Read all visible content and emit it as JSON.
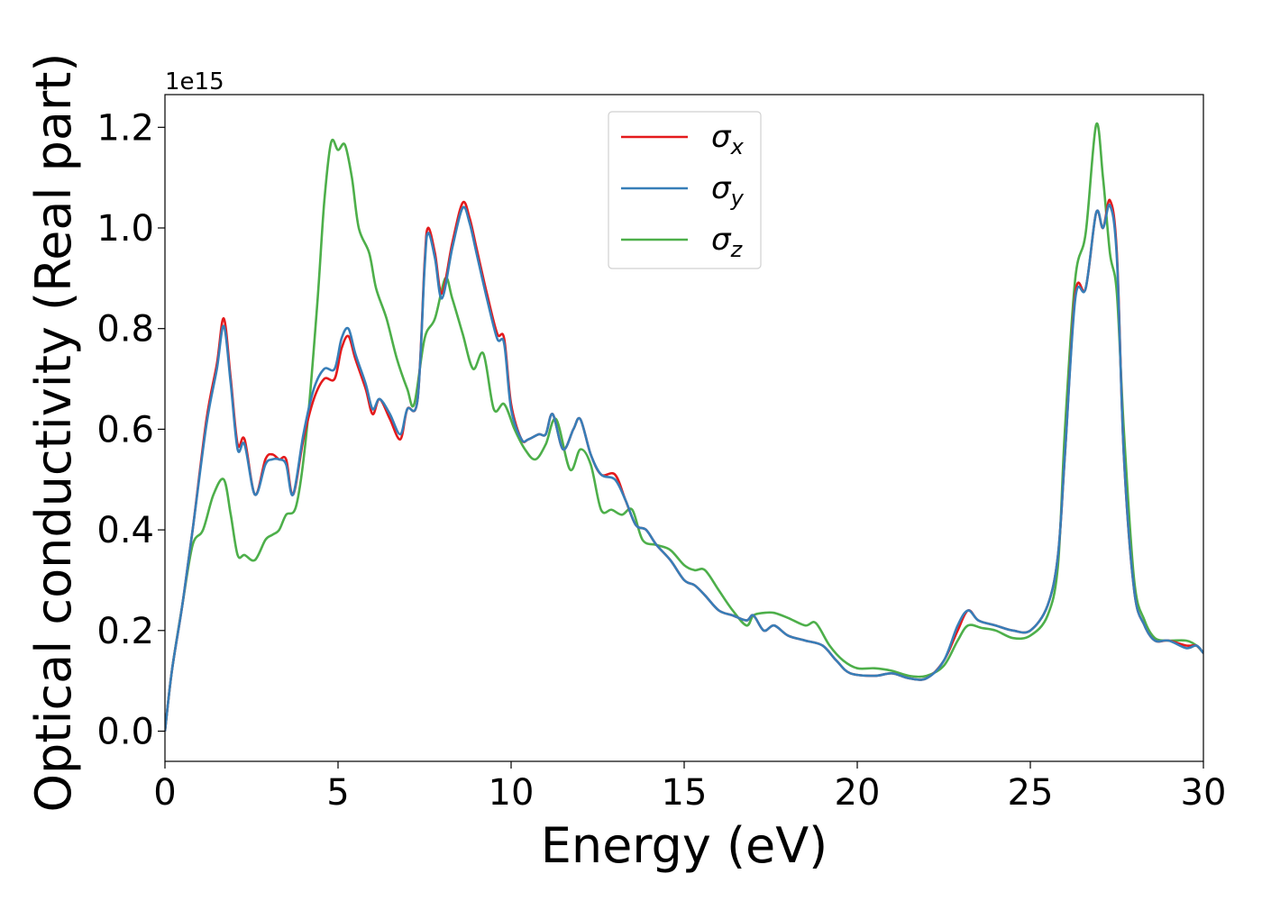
{
  "chart_data": {
    "type": "line",
    "xlabel": "Energy (eV)",
    "ylabel": "Optical conductivity (Real part)",
    "y_offset_label": "1e15",
    "xlim": [
      0,
      30
    ],
    "ylim": [
      -0.06,
      1.265
    ],
    "x_ticks": [
      0,
      5,
      10,
      15,
      20,
      25,
      30
    ],
    "x_tick_labels": [
      "0",
      "5",
      "10",
      "15",
      "20",
      "25",
      "30"
    ],
    "y_ticks": [
      0.0,
      0.2,
      0.4,
      0.6,
      0.8,
      1.0,
      1.2
    ],
    "y_tick_labels": [
      "0.0",
      "0.2",
      "0.4",
      "0.6",
      "0.8",
      "1.0",
      "1.2"
    ],
    "grid": false,
    "legend_position": "top-center",
    "series": [
      {
        "name": "σ",
        "subscript": "x",
        "color": "#e41a1c",
        "points": [
          [
            0,
            0
          ],
          [
            0.2,
            0.12
          ],
          [
            0.5,
            0.25
          ],
          [
            0.8,
            0.4
          ],
          [
            1.2,
            0.62
          ],
          [
            1.5,
            0.73
          ],
          [
            1.7,
            0.82
          ],
          [
            1.9,
            0.7
          ],
          [
            2.1,
            0.57
          ],
          [
            2.3,
            0.58
          ],
          [
            2.6,
            0.47
          ],
          [
            2.9,
            0.54
          ],
          [
            3.1,
            0.55
          ],
          [
            3.3,
            0.54
          ],
          [
            3.5,
            0.54
          ],
          [
            3.7,
            0.47
          ],
          [
            4.0,
            0.58
          ],
          [
            4.3,
            0.66
          ],
          [
            4.6,
            0.7
          ],
          [
            4.9,
            0.7
          ],
          [
            5.1,
            0.76
          ],
          [
            5.3,
            0.785
          ],
          [
            5.5,
            0.74
          ],
          [
            5.8,
            0.68
          ],
          [
            6.0,
            0.63
          ],
          [
            6.2,
            0.66
          ],
          [
            6.5,
            0.62
          ],
          [
            6.8,
            0.58
          ],
          [
            7.0,
            0.64
          ],
          [
            7.3,
            0.66
          ],
          [
            7.5,
            0.93
          ],
          [
            7.6,
            1.0
          ],
          [
            7.8,
            0.95
          ],
          [
            8.0,
            0.87
          ],
          [
            8.3,
            0.97
          ],
          [
            8.6,
            1.05
          ],
          [
            8.8,
            1.02
          ],
          [
            9.0,
            0.96
          ],
          [
            9.3,
            0.87
          ],
          [
            9.6,
            0.79
          ],
          [
            9.8,
            0.78
          ],
          [
            10.0,
            0.65
          ],
          [
            10.3,
            0.58
          ],
          [
            10.5,
            0.58
          ],
          [
            10.8,
            0.59
          ],
          [
            11.0,
            0.59
          ],
          [
            11.2,
            0.63
          ],
          [
            11.5,
            0.56
          ],
          [
            11.8,
            0.6
          ],
          [
            12.0,
            0.62
          ],
          [
            12.3,
            0.55
          ],
          [
            12.6,
            0.51
          ],
          [
            13.0,
            0.51
          ],
          [
            13.3,
            0.46
          ],
          [
            13.6,
            0.41
          ],
          [
            13.9,
            0.4
          ],
          [
            14.2,
            0.37
          ],
          [
            14.6,
            0.34
          ],
          [
            15.0,
            0.3
          ],
          [
            15.3,
            0.29
          ],
          [
            15.6,
            0.27
          ],
          [
            16.0,
            0.24
          ],
          [
            16.4,
            0.23
          ],
          [
            16.8,
            0.22
          ],
          [
            17.0,
            0.23
          ],
          [
            17.3,
            0.2
          ],
          [
            17.6,
            0.21
          ],
          [
            18.0,
            0.19
          ],
          [
            18.5,
            0.18
          ],
          [
            19.0,
            0.17
          ],
          [
            19.4,
            0.14
          ],
          [
            19.8,
            0.115
          ],
          [
            20.5,
            0.11
          ],
          [
            21.0,
            0.115
          ],
          [
            21.5,
            0.105
          ],
          [
            22.0,
            0.105
          ],
          [
            22.5,
            0.14
          ],
          [
            22.9,
            0.2
          ],
          [
            23.2,
            0.24
          ],
          [
            23.5,
            0.22
          ],
          [
            24.0,
            0.21
          ],
          [
            24.5,
            0.2
          ],
          [
            25.0,
            0.2
          ],
          [
            25.5,
            0.25
          ],
          [
            25.8,
            0.35
          ],
          [
            26.0,
            0.55
          ],
          [
            26.3,
            0.87
          ],
          [
            26.6,
            0.88
          ],
          [
            26.9,
            1.03
          ],
          [
            27.1,
            1.0
          ],
          [
            27.3,
            1.055
          ],
          [
            27.5,
            0.95
          ],
          [
            27.7,
            0.55
          ],
          [
            28.0,
            0.28
          ],
          [
            28.3,
            0.21
          ],
          [
            28.6,
            0.18
          ],
          [
            29.0,
            0.18
          ],
          [
            29.5,
            0.17
          ],
          [
            29.8,
            0.17
          ],
          [
            30.0,
            0.155
          ]
        ]
      },
      {
        "name": "σ",
        "subscript": "y",
        "color": "#377eb8",
        "points": [
          [
            0,
            0
          ],
          [
            0.2,
            0.12
          ],
          [
            0.5,
            0.25
          ],
          [
            0.8,
            0.4
          ],
          [
            1.2,
            0.61
          ],
          [
            1.5,
            0.72
          ],
          [
            1.7,
            0.805
          ],
          [
            1.9,
            0.69
          ],
          [
            2.1,
            0.56
          ],
          [
            2.3,
            0.57
          ],
          [
            2.6,
            0.47
          ],
          [
            2.9,
            0.53
          ],
          [
            3.1,
            0.54
          ],
          [
            3.3,
            0.54
          ],
          [
            3.5,
            0.53
          ],
          [
            3.7,
            0.47
          ],
          [
            4.0,
            0.59
          ],
          [
            4.3,
            0.68
          ],
          [
            4.6,
            0.72
          ],
          [
            4.9,
            0.72
          ],
          [
            5.1,
            0.78
          ],
          [
            5.3,
            0.8
          ],
          [
            5.5,
            0.75
          ],
          [
            5.8,
            0.69
          ],
          [
            6.0,
            0.64
          ],
          [
            6.2,
            0.66
          ],
          [
            6.5,
            0.63
          ],
          [
            6.8,
            0.59
          ],
          [
            7.0,
            0.64
          ],
          [
            7.3,
            0.66
          ],
          [
            7.5,
            0.92
          ],
          [
            7.6,
            0.99
          ],
          [
            7.8,
            0.94
          ],
          [
            8.0,
            0.86
          ],
          [
            8.3,
            0.96
          ],
          [
            8.6,
            1.04
          ],
          [
            8.8,
            1.01
          ],
          [
            9.0,
            0.95
          ],
          [
            9.3,
            0.86
          ],
          [
            9.6,
            0.78
          ],
          [
            9.8,
            0.77
          ],
          [
            10.0,
            0.64
          ],
          [
            10.3,
            0.58
          ],
          [
            10.5,
            0.58
          ],
          [
            10.8,
            0.59
          ],
          [
            11.0,
            0.59
          ],
          [
            11.2,
            0.63
          ],
          [
            11.5,
            0.56
          ],
          [
            11.8,
            0.6
          ],
          [
            12.0,
            0.62
          ],
          [
            12.3,
            0.55
          ],
          [
            12.6,
            0.51
          ],
          [
            13.0,
            0.5
          ],
          [
            13.3,
            0.46
          ],
          [
            13.6,
            0.41
          ],
          [
            13.9,
            0.4
          ],
          [
            14.2,
            0.37
          ],
          [
            14.6,
            0.34
          ],
          [
            15.0,
            0.3
          ],
          [
            15.3,
            0.29
          ],
          [
            15.6,
            0.27
          ],
          [
            16.0,
            0.24
          ],
          [
            16.4,
            0.23
          ],
          [
            16.8,
            0.22
          ],
          [
            17.0,
            0.23
          ],
          [
            17.3,
            0.2
          ],
          [
            17.6,
            0.21
          ],
          [
            18.0,
            0.19
          ],
          [
            18.5,
            0.18
          ],
          [
            19.0,
            0.17
          ],
          [
            19.4,
            0.14
          ],
          [
            19.8,
            0.115
          ],
          [
            20.5,
            0.11
          ],
          [
            21.0,
            0.115
          ],
          [
            21.5,
            0.105
          ],
          [
            22.0,
            0.105
          ],
          [
            22.5,
            0.14
          ],
          [
            22.9,
            0.21
          ],
          [
            23.2,
            0.24
          ],
          [
            23.5,
            0.22
          ],
          [
            24.0,
            0.21
          ],
          [
            24.5,
            0.2
          ],
          [
            25.0,
            0.2
          ],
          [
            25.5,
            0.25
          ],
          [
            25.8,
            0.35
          ],
          [
            26.0,
            0.55
          ],
          [
            26.3,
            0.86
          ],
          [
            26.6,
            0.88
          ],
          [
            26.9,
            1.03
          ],
          [
            27.1,
            1.0
          ],
          [
            27.3,
            1.045
          ],
          [
            27.5,
            0.94
          ],
          [
            27.7,
            0.55
          ],
          [
            28.0,
            0.28
          ],
          [
            28.3,
            0.21
          ],
          [
            28.6,
            0.18
          ],
          [
            29.0,
            0.18
          ],
          [
            29.5,
            0.165
          ],
          [
            29.8,
            0.17
          ],
          [
            30.0,
            0.155
          ]
        ]
      },
      {
        "name": "σ",
        "subscript": "z",
        "color": "#4daf4a",
        "points": [
          [
            0,
            0
          ],
          [
            0.2,
            0.12
          ],
          [
            0.5,
            0.25
          ],
          [
            0.8,
            0.37
          ],
          [
            1.1,
            0.4
          ],
          [
            1.4,
            0.47
          ],
          [
            1.7,
            0.5
          ],
          [
            1.9,
            0.43
          ],
          [
            2.1,
            0.35
          ],
          [
            2.3,
            0.35
          ],
          [
            2.6,
            0.34
          ],
          [
            2.9,
            0.38
          ],
          [
            3.1,
            0.39
          ],
          [
            3.3,
            0.4
          ],
          [
            3.5,
            0.43
          ],
          [
            3.8,
            0.45
          ],
          [
            4.1,
            0.6
          ],
          [
            4.4,
            0.85
          ],
          [
            4.6,
            1.05
          ],
          [
            4.8,
            1.17
          ],
          [
            5.0,
            1.155
          ],
          [
            5.2,
            1.165
          ],
          [
            5.4,
            1.1
          ],
          [
            5.6,
            1.0
          ],
          [
            5.9,
            0.95
          ],
          [
            6.1,
            0.88
          ],
          [
            6.4,
            0.82
          ],
          [
            6.7,
            0.74
          ],
          [
            7.0,
            0.68
          ],
          [
            7.2,
            0.65
          ],
          [
            7.5,
            0.78
          ],
          [
            7.8,
            0.82
          ],
          [
            8.1,
            0.9
          ],
          [
            8.3,
            0.86
          ],
          [
            8.6,
            0.79
          ],
          [
            8.9,
            0.72
          ],
          [
            9.2,
            0.75
          ],
          [
            9.5,
            0.64
          ],
          [
            9.8,
            0.65
          ],
          [
            10.1,
            0.6
          ],
          [
            10.4,
            0.56
          ],
          [
            10.7,
            0.54
          ],
          [
            11.0,
            0.57
          ],
          [
            11.3,
            0.62
          ],
          [
            11.7,
            0.52
          ],
          [
            12.0,
            0.56
          ],
          [
            12.3,
            0.53
          ],
          [
            12.6,
            0.44
          ],
          [
            12.9,
            0.44
          ],
          [
            13.2,
            0.43
          ],
          [
            13.5,
            0.44
          ],
          [
            13.8,
            0.38
          ],
          [
            14.2,
            0.37
          ],
          [
            14.6,
            0.36
          ],
          [
            15.0,
            0.33
          ],
          [
            15.3,
            0.32
          ],
          [
            15.6,
            0.32
          ],
          [
            16.0,
            0.28
          ],
          [
            16.4,
            0.24
          ],
          [
            16.8,
            0.21
          ],
          [
            17.0,
            0.23
          ],
          [
            17.3,
            0.235
          ],
          [
            17.6,
            0.235
          ],
          [
            18.0,
            0.225
          ],
          [
            18.5,
            0.21
          ],
          [
            18.8,
            0.215
          ],
          [
            19.2,
            0.17
          ],
          [
            19.6,
            0.14
          ],
          [
            20.0,
            0.125
          ],
          [
            20.5,
            0.125
          ],
          [
            21.0,
            0.12
          ],
          [
            21.5,
            0.11
          ],
          [
            22.0,
            0.11
          ],
          [
            22.5,
            0.13
          ],
          [
            22.9,
            0.18
          ],
          [
            23.2,
            0.21
          ],
          [
            23.6,
            0.205
          ],
          [
            24.0,
            0.2
          ],
          [
            24.5,
            0.185
          ],
          [
            25.0,
            0.19
          ],
          [
            25.5,
            0.23
          ],
          [
            25.8,
            0.33
          ],
          [
            26.0,
            0.6
          ],
          [
            26.3,
            0.9
          ],
          [
            26.6,
            0.99
          ],
          [
            26.9,
            1.205
          ],
          [
            27.1,
            1.1
          ],
          [
            27.3,
            0.95
          ],
          [
            27.5,
            0.87
          ],
          [
            27.7,
            0.6
          ],
          [
            28.0,
            0.3
          ],
          [
            28.3,
            0.22
          ],
          [
            28.6,
            0.185
          ],
          [
            29.0,
            0.18
          ],
          [
            29.5,
            0.18
          ],
          [
            29.8,
            0.17
          ],
          [
            30.0,
            0.155
          ]
        ]
      }
    ]
  }
}
